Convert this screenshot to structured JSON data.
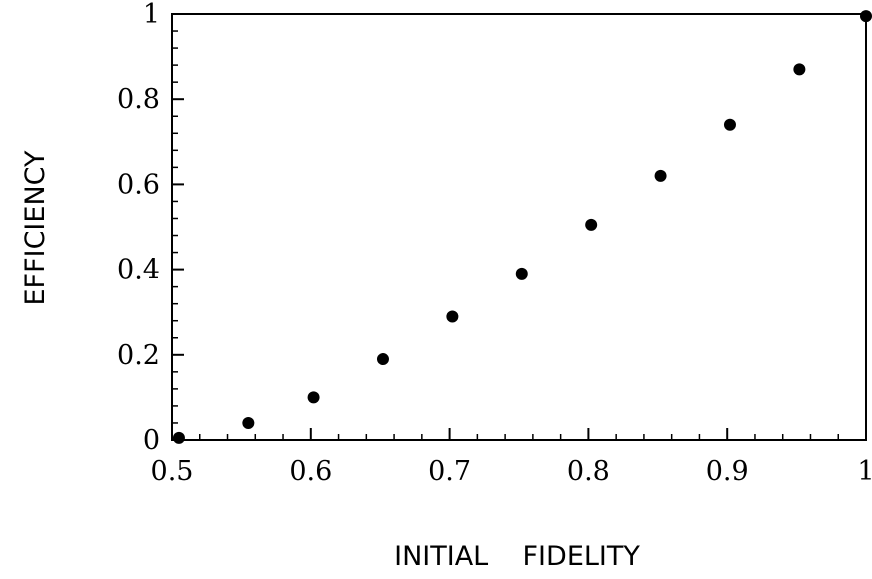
{
  "chart_data": {
    "type": "scatter",
    "xlabel": "INITIAL    FIDELITY",
    "ylabel": "EFFICIENCY",
    "xlim": [
      0.5,
      1.0
    ],
    "ylim": [
      0,
      1
    ],
    "x_ticks": [
      0.5,
      0.6,
      0.7,
      0.8,
      0.9,
      1.0
    ],
    "x_tick_labels": [
      "0.5",
      "0.6",
      "0.7",
      "0.8",
      "0.9",
      "1"
    ],
    "y_ticks": [
      0,
      0.2,
      0.4,
      0.6,
      0.8,
      1.0
    ],
    "y_tick_labels": [
      "0",
      "0.2",
      "0.4",
      "0.6",
      "0.8",
      "1"
    ],
    "grid": false,
    "series": [
      {
        "x": [
          0.505,
          0.555,
          0.602,
          0.652,
          0.702,
          0.752,
          0.802,
          0.852,
          0.902,
          0.952,
          1.0
        ],
        "y": [
          0.005,
          0.04,
          0.1,
          0.19,
          0.29,
          0.39,
          0.505,
          0.62,
          0.74,
          0.87,
          0.995
        ],
        "color": "#000000"
      }
    ]
  }
}
